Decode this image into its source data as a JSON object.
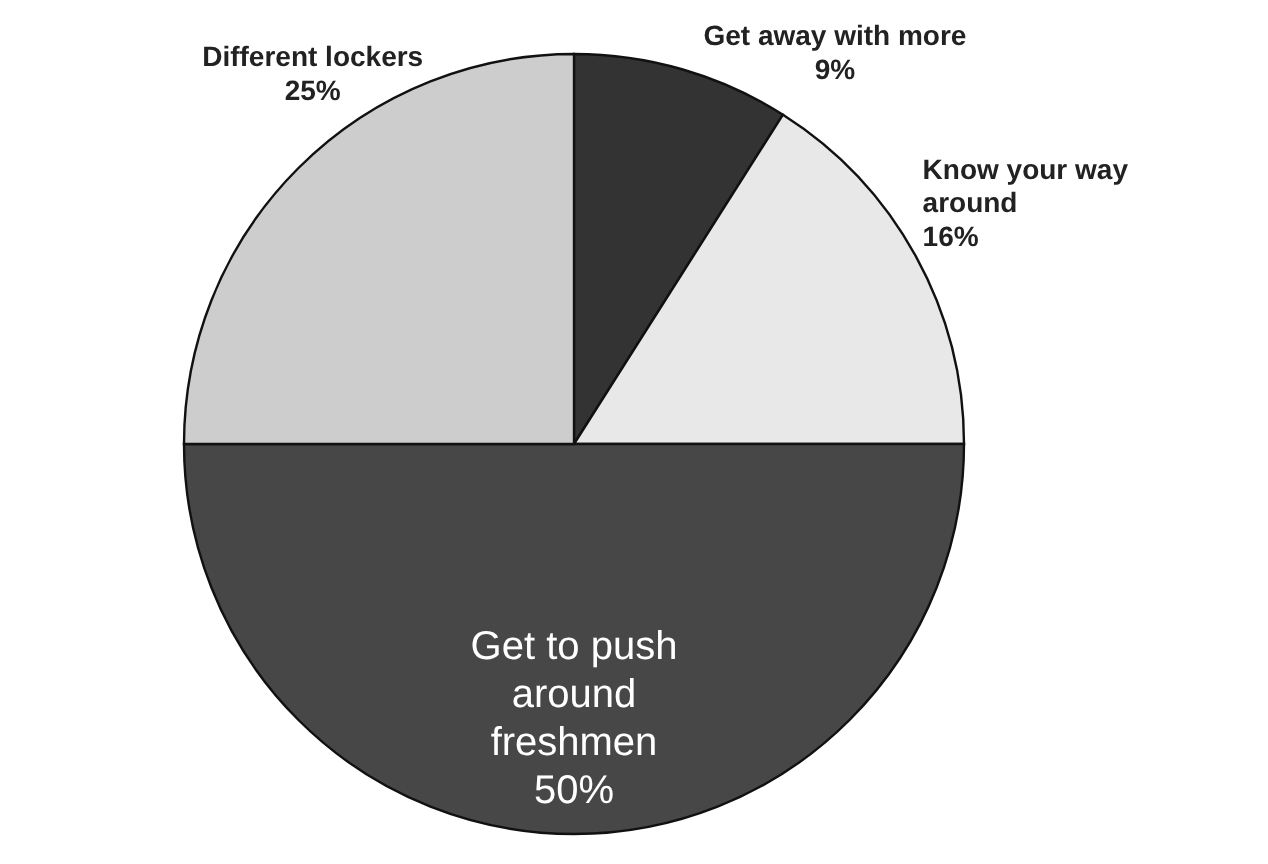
{
  "chart_data": {
    "type": "pie",
    "categories": [
      "Get away with more",
      "Know your way around",
      "Get to push around freshmen",
      "Different lockers"
    ],
    "values": [
      9,
      16,
      50,
      25
    ],
    "colors": [
      "#333333",
      "#e8e8e8",
      "#474747",
      "#cdcdcd"
    ],
    "value_labels": [
      "9%",
      "16%",
      "50%",
      "25%"
    ]
  }
}
